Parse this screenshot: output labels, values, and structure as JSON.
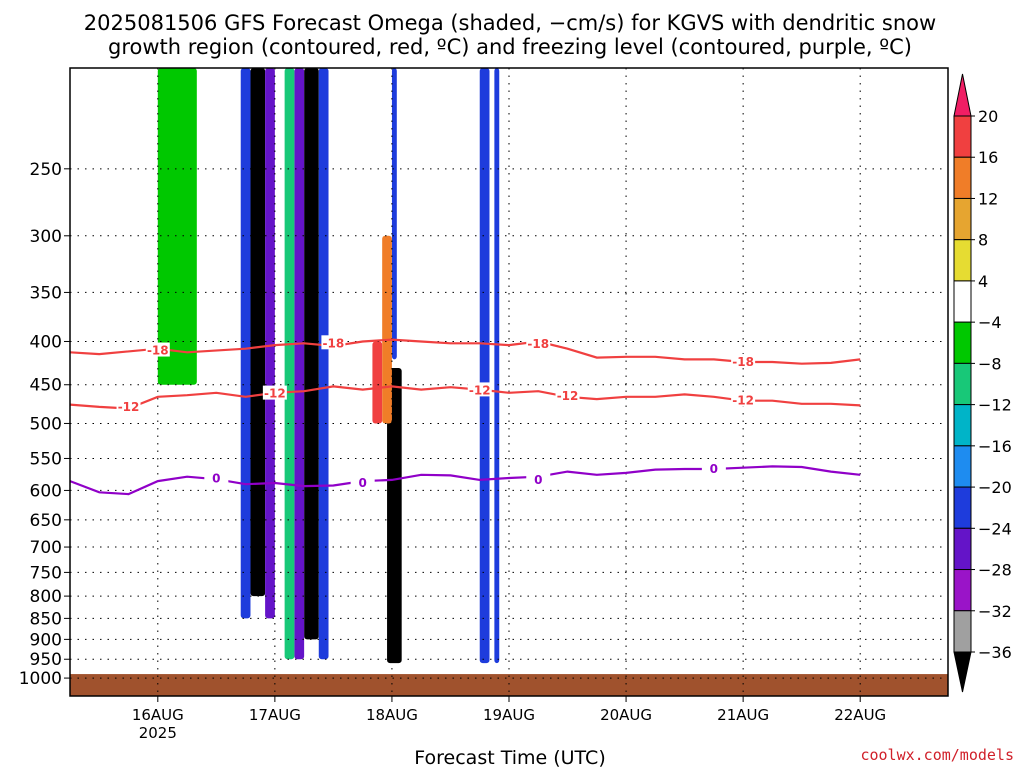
{
  "title": {
    "line1": "2025081506 GFS Forecast Omega (shaded, −cm/s) for KGVS with dendritic snow",
    "line2": "growth region (contoured, red, ºC) and freezing level (contoured, purple, ºC)"
  },
  "credit": "coolwx.com/models",
  "chart_data": {
    "type": "heatmap",
    "xlabel": "Forecast Time (UTC)",
    "ylabel": "",
    "y_axis": {
      "scale": "log-pressure (hPa), inverted",
      "ylim": [
        1050,
        190
      ],
      "ticks": [
        250,
        300,
        350,
        400,
        450,
        500,
        550,
        600,
        650,
        700,
        750,
        800,
        850,
        900,
        950,
        1000
      ]
    },
    "x_axis": {
      "xlim": [
        "2025-08-15 06Z",
        "2025-08-22 18Z"
      ],
      "ticks": [
        {
          "t": "2025-08-16 00Z",
          "label": "16AUG",
          "sub": "2025"
        },
        {
          "t": "2025-08-17 00Z",
          "label": "17AUG",
          "sub": ""
        },
        {
          "t": "2025-08-18 00Z",
          "label": "18AUG",
          "sub": ""
        },
        {
          "t": "2025-08-19 00Z",
          "label": "19AUG",
          "sub": ""
        },
        {
          "t": "2025-08-20 00Z",
          "label": "20AUG",
          "sub": ""
        },
        {
          "t": "2025-08-21 00Z",
          "label": "21AUG",
          "sub": ""
        },
        {
          "t": "2025-08-22 00Z",
          "label": "22AUG",
          "sub": ""
        }
      ]
    },
    "grid": true,
    "colorbar": {
      "labels": [
        "20",
        "16",
        "12",
        "8",
        "4",
        "−4",
        "−8",
        "−12",
        "−16",
        "−20",
        "−24",
        "−28",
        "−32",
        "−36"
      ],
      "colors": [
        "#f01e64",
        "#f04040",
        "#f07d28",
        "#e6a530",
        "#e6dc32",
        "#ffffff",
        "#00c800",
        "#18c878",
        "#00b4c8",
        "#1e8cf0",
        "#1e3cdc",
        "#6414c8",
        "#9a14c8",
        "#a0a0a0",
        "#000000"
      ]
    },
    "ground": {
      "below_hpa": 1000,
      "color": "#a0522d"
    },
    "contours": [
      {
        "name": "-18",
        "color": "#f04040",
        "label": "-18",
        "points": [
          [
            0,
            412
          ],
          [
            6,
            414
          ],
          [
            18,
            408
          ],
          [
            24,
            412
          ],
          [
            36,
            408
          ],
          [
            42,
            404
          ],
          [
            48,
            402
          ],
          [
            54,
            405
          ],
          [
            60,
            400
          ],
          [
            66,
            398
          ],
          [
            72,
            400
          ],
          [
            78,
            402
          ],
          [
            84,
            402
          ],
          [
            90,
            404
          ],
          [
            96,
            400
          ],
          [
            102,
            408
          ],
          [
            108,
            418
          ],
          [
            114,
            417
          ],
          [
            120,
            417
          ],
          [
            126,
            420
          ],
          [
            132,
            420
          ],
          [
            138,
            423
          ],
          [
            144,
            423
          ],
          [
            150,
            425
          ],
          [
            156,
            424
          ],
          [
            162,
            420
          ]
        ],
        "label_at": [
          [
            18,
            410
          ],
          [
            54,
            402
          ],
          [
            96,
            403
          ],
          [
            138,
            423
          ]
        ]
      },
      {
        "name": "-12",
        "color": "#f04040",
        "label": "-12",
        "points": [
          [
            0,
            475
          ],
          [
            6,
            478
          ],
          [
            12,
            480
          ],
          [
            18,
            465
          ],
          [
            24,
            463
          ],
          [
            30,
            460
          ],
          [
            36,
            465
          ],
          [
            42,
            460
          ],
          [
            48,
            458
          ],
          [
            54,
            452
          ],
          [
            60,
            456
          ],
          [
            66,
            452
          ],
          [
            72,
            456
          ],
          [
            78,
            453
          ],
          [
            84,
            456
          ],
          [
            90,
            460
          ],
          [
            96,
            458
          ],
          [
            102,
            465
          ],
          [
            108,
            468
          ],
          [
            114,
            465
          ],
          [
            120,
            465
          ],
          [
            126,
            462
          ],
          [
            132,
            465
          ],
          [
            138,
            470
          ],
          [
            144,
            470
          ],
          [
            150,
            474
          ],
          [
            156,
            474
          ],
          [
            162,
            476
          ]
        ],
        "label_at": [
          [
            12,
            478
          ],
          [
            42,
            461
          ],
          [
            84,
            457
          ],
          [
            102,
            464
          ],
          [
            138,
            470
          ]
        ]
      },
      {
        "name": "0",
        "color": "#9000c8",
        "label": "0",
        "points": [
          [
            0,
            585
          ],
          [
            6,
            603
          ],
          [
            12,
            606
          ],
          [
            18,
            585
          ],
          [
            24,
            578
          ],
          [
            30,
            582
          ],
          [
            36,
            590
          ],
          [
            42,
            588
          ],
          [
            48,
            593
          ],
          [
            54,
            592
          ],
          [
            60,
            585
          ],
          [
            66,
            583
          ],
          [
            72,
            575
          ],
          [
            78,
            576
          ],
          [
            84,
            583
          ],
          [
            90,
            580
          ],
          [
            96,
            578
          ],
          [
            102,
            570
          ],
          [
            108,
            575
          ],
          [
            114,
            572
          ],
          [
            120,
            567
          ],
          [
            126,
            566
          ],
          [
            132,
            566
          ],
          [
            138,
            564
          ],
          [
            144,
            562
          ],
          [
            150,
            563
          ],
          [
            156,
            570
          ],
          [
            162,
            575
          ]
        ],
        "label_at": [
          [
            30,
            581
          ],
          [
            60,
            588
          ],
          [
            96,
            583
          ],
          [
            132,
            566
          ]
        ]
      }
    ],
    "cells": [
      {
        "t": [
          18,
          26
        ],
        "p": [
          190,
          450
        ],
        "omega": 6
      },
      {
        "t": [
          37,
          40
        ],
        "p": [
          190,
          800
        ],
        "omega": 40
      },
      {
        "t": [
          35,
          37
        ],
        "p": [
          190,
          850
        ],
        "omega": 22
      },
      {
        "t": [
          40,
          42
        ],
        "p": [
          190,
          850
        ],
        "omega": 24
      },
      {
        "t": [
          48,
          51
        ],
        "p": [
          190,
          900
        ],
        "omega": 40
      },
      {
        "t": [
          46,
          48
        ],
        "p": [
          190,
          950
        ],
        "omega": 26
      },
      {
        "t": [
          44,
          46
        ],
        "p": [
          190,
          950
        ],
        "omega": 10
      },
      {
        "t": [
          51,
          53
        ],
        "p": [
          190,
          950
        ],
        "omega": 22
      },
      {
        "t": [
          84,
          86
        ],
        "p": [
          190,
          960
        ],
        "omega": 22
      },
      {
        "t": [
          66,
          67
        ],
        "p": [
          190,
          420
        ],
        "omega": 22
      },
      {
        "t": [
          65,
          68
        ],
        "p": [
          430,
          960
        ],
        "omega": 40
      },
      {
        "t": [
          87,
          88
        ],
        "p": [
          190,
          960
        ],
        "omega": 20
      },
      {
        "t": [
          62,
          64
        ],
        "p": [
          400,
          500
        ],
        "omega": -16
      },
      {
        "t": [
          64,
          66
        ],
        "p": [
          300,
          500
        ],
        "omega": -12
      }
    ]
  }
}
